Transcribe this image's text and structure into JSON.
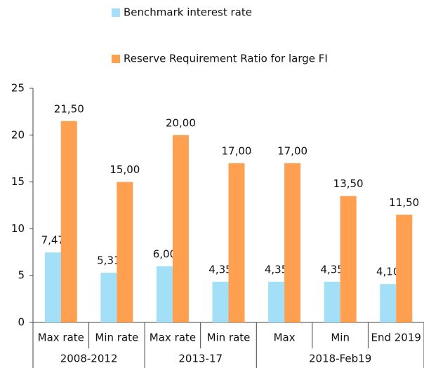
{
  "chart_data": {
    "type": "bar",
    "category_groups": [
      {
        "name": "2008-2012",
        "categories": [
          "Max rate",
          "Min rate"
        ]
      },
      {
        "name": "2013-17",
        "categories": [
          "Max rate",
          "Min rate"
        ]
      },
      {
        "name": "2018-Feb19",
        "categories": [
          "Max",
          "Min",
          "End 2019"
        ]
      }
    ],
    "series": [
      {
        "name": "Benchmark interest rate",
        "color": "#a3dff7",
        "values": [
          7.47,
          5.31,
          6.0,
          4.35,
          4.35,
          4.35,
          4.1
        ],
        "value_labels": [
          "7,47",
          "5,31",
          "6,00",
          "4,35",
          "4,35",
          "4,35",
          "4,10"
        ]
      },
      {
        "name": "Reserve Requirement Ratio for large FI",
        "color": "#ff9f50",
        "values": [
          21.5,
          15.0,
          20.0,
          17.0,
          17.0,
          13.5,
          11.5
        ],
        "value_labels": [
          "21,50",
          "15,00",
          "20,00",
          "17,00",
          "17,00",
          "13,50",
          "11,50"
        ]
      }
    ],
    "ylim": [
      0,
      25
    ],
    "yticks": [
      0,
      5,
      10,
      15,
      20,
      25
    ],
    "grid": false
  }
}
